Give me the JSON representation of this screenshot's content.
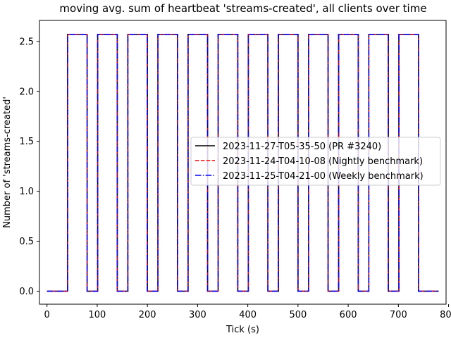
{
  "chart_data": {
    "type": "line",
    "title": "moving avg. sum of heartbeat 'streams-created', all clients over time",
    "xlabel": "Tick (s)",
    "ylabel": "Number of 'streams-created'",
    "xlim": [
      -15,
      795
    ],
    "ylim": [
      -0.13,
      2.71
    ],
    "xticks": [
      0,
      100,
      200,
      300,
      400,
      500,
      600,
      700,
      800
    ],
    "yticks": [
      0.0,
      0.5,
      1.0,
      1.5,
      2.0,
      2.5
    ],
    "xtick_labels": [
      "0",
      "100",
      "200",
      "300",
      "400",
      "500",
      "600",
      "700",
      "800"
    ],
    "ytick_labels": [
      "0.0",
      "0.5",
      "1.0",
      "1.5",
      "2.0",
      "2.5"
    ],
    "grid": false,
    "legend_position": "center-right",
    "series": [
      {
        "name": "2023-11-27-T05-35-50 (PR #3240)",
        "color": "#000000",
        "linestyle": "solid",
        "x": [
          0,
          41,
          41,
          80,
          80,
          101,
          101,
          140,
          140,
          161,
          161,
          200,
          200,
          221,
          221,
          260,
          260,
          281,
          281,
          320,
          320,
          341,
          341,
          380,
          380,
          401,
          401,
          440,
          440,
          461,
          461,
          500,
          500,
          521,
          521,
          560,
          560,
          581,
          581,
          620,
          620,
          641,
          641,
          680,
          680,
          701,
          701,
          740,
          740,
          780
        ],
        "y": [
          0,
          0,
          2.57,
          2.57,
          0,
          0,
          2.57,
          2.57,
          0,
          0,
          2.57,
          2.57,
          0,
          0,
          2.57,
          2.57,
          0,
          0,
          2.57,
          2.57,
          0,
          0,
          2.57,
          2.57,
          0,
          0,
          2.57,
          2.57,
          0,
          0,
          2.57,
          2.57,
          0,
          0,
          2.57,
          2.57,
          0,
          0,
          2.57,
          2.57,
          0,
          0,
          2.57,
          2.57,
          0,
          0,
          2.57,
          2.57,
          0,
          0
        ]
      },
      {
        "name": "2023-11-24-T04-10-08 (Nightly benchmark)",
        "color": "#ff0000",
        "linestyle": "dashed",
        "x": [
          0,
          41,
          41,
          80,
          80,
          101,
          101,
          140,
          140,
          161,
          161,
          200,
          200,
          221,
          221,
          260,
          260,
          281,
          281,
          320,
          320,
          341,
          341,
          380,
          380,
          401,
          401,
          440,
          440,
          461,
          461,
          500,
          500,
          521,
          521,
          560,
          560,
          581,
          581,
          620,
          620,
          641,
          641,
          680,
          680,
          701,
          701,
          740,
          740,
          780
        ],
        "y": [
          0,
          0,
          2.57,
          2.57,
          0,
          0,
          2.57,
          2.57,
          0,
          0,
          2.57,
          2.57,
          0,
          0,
          2.57,
          2.57,
          0,
          0,
          2.57,
          2.57,
          0,
          0,
          2.57,
          2.57,
          0,
          0,
          2.57,
          2.57,
          0,
          0,
          2.57,
          2.57,
          0,
          0,
          2.57,
          2.57,
          0,
          0,
          2.57,
          2.57,
          0,
          0,
          2.57,
          2.57,
          0,
          0,
          2.57,
          2.57,
          0,
          0
        ]
      },
      {
        "name": "2023-11-25-T04-21-00 (Weekly benchmark)",
        "color": "#0000ff",
        "linestyle": "dashdot",
        "x": [
          0,
          41,
          41,
          80,
          80,
          101,
          101,
          140,
          140,
          161,
          161,
          200,
          200,
          221,
          221,
          260,
          260,
          281,
          281,
          320,
          320,
          341,
          341,
          380,
          380,
          401,
          401,
          440,
          440,
          461,
          461,
          500,
          500,
          521,
          521,
          560,
          560,
          581,
          581,
          620,
          620,
          641,
          641,
          680,
          680,
          701,
          701,
          740,
          740,
          780
        ],
        "y": [
          0,
          0,
          2.57,
          2.57,
          0,
          0,
          2.57,
          2.57,
          0,
          0,
          2.57,
          2.57,
          0,
          0,
          2.57,
          2.57,
          0,
          0,
          2.57,
          2.57,
          0,
          0,
          2.57,
          2.57,
          0,
          0,
          2.57,
          2.57,
          0,
          0,
          2.57,
          2.57,
          0,
          0,
          2.57,
          2.57,
          0,
          0,
          2.57,
          2.57,
          0,
          0,
          2.57,
          2.57,
          0,
          0,
          2.57,
          2.57,
          0,
          0
        ]
      }
    ]
  }
}
